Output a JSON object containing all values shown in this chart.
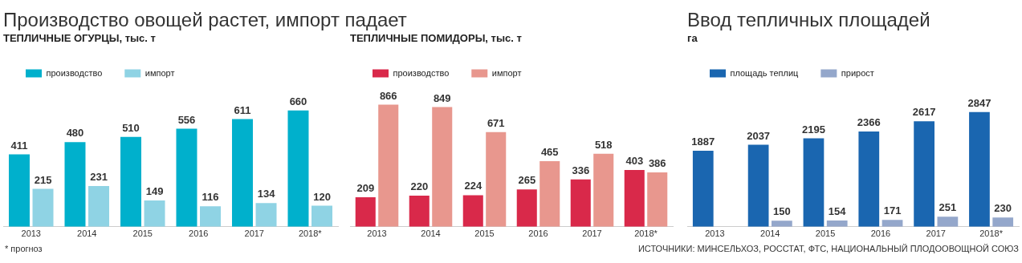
{
  "chart_data": [
    {
      "type": "bar",
      "title": "Производство овощей растет, импорт падает",
      "subtitle": "ТЕПЛИЧНЫЕ ОГУРЦЫ, тыс. т",
      "categories": [
        "2013",
        "2014",
        "2015",
        "2016",
        "2017",
        "2018*"
      ],
      "series": [
        {
          "name": "производство",
          "color": "#00b0cc",
          "values": [
            411,
            480,
            510,
            556,
            611,
            660
          ]
        },
        {
          "name": "импорт",
          "color": "#8fd3e4",
          "values": [
            215,
            231,
            149,
            116,
            134,
            120
          ]
        }
      ],
      "data_labels": true,
      "legend": "top left",
      "annotations": [
        "* прогноз"
      ]
    },
    {
      "type": "bar",
      "title": "ТЕПЛИЧНЫЕ ПОМИДОРЫ, тыс. т",
      "categories": [
        "2013",
        "2014",
        "2015",
        "2016",
        "2017",
        "2018*"
      ],
      "series": [
        {
          "name": "производство",
          "color": "#d9294a",
          "values": [
            209,
            220,
            224,
            265,
            336,
            403
          ]
        },
        {
          "name": "импорт",
          "color": "#e8978e",
          "values": [
            866,
            849,
            671,
            465,
            518,
            386
          ]
        }
      ],
      "data_labels": true,
      "legend": "top left"
    },
    {
      "type": "bar",
      "title": "Ввод тепличных площадей",
      "subtitle": "га",
      "categories": [
        "2013",
        "2014",
        "2015",
        "2016",
        "2017",
        "2018*"
      ],
      "series": [
        {
          "name": "площадь теплиц",
          "color": "#1a66b0",
          "values": [
            1887,
            2037,
            2195,
            2366,
            2617,
            2847
          ]
        },
        {
          "name": "прирост",
          "color": "#94a7cb",
          "values": [
            null,
            150,
            154,
            171,
            251,
            230
          ]
        }
      ],
      "data_labels": true,
      "legend": "top left",
      "annotations": [
        "ИСТОЧНИКИ: МИНСЕЛЬХОЗ, РОССТАТ, ФТС, НАЦИОНАЛЬНЫЙ ПЛОДООВОЩНОЙ СОЮЗ"
      ]
    }
  ]
}
